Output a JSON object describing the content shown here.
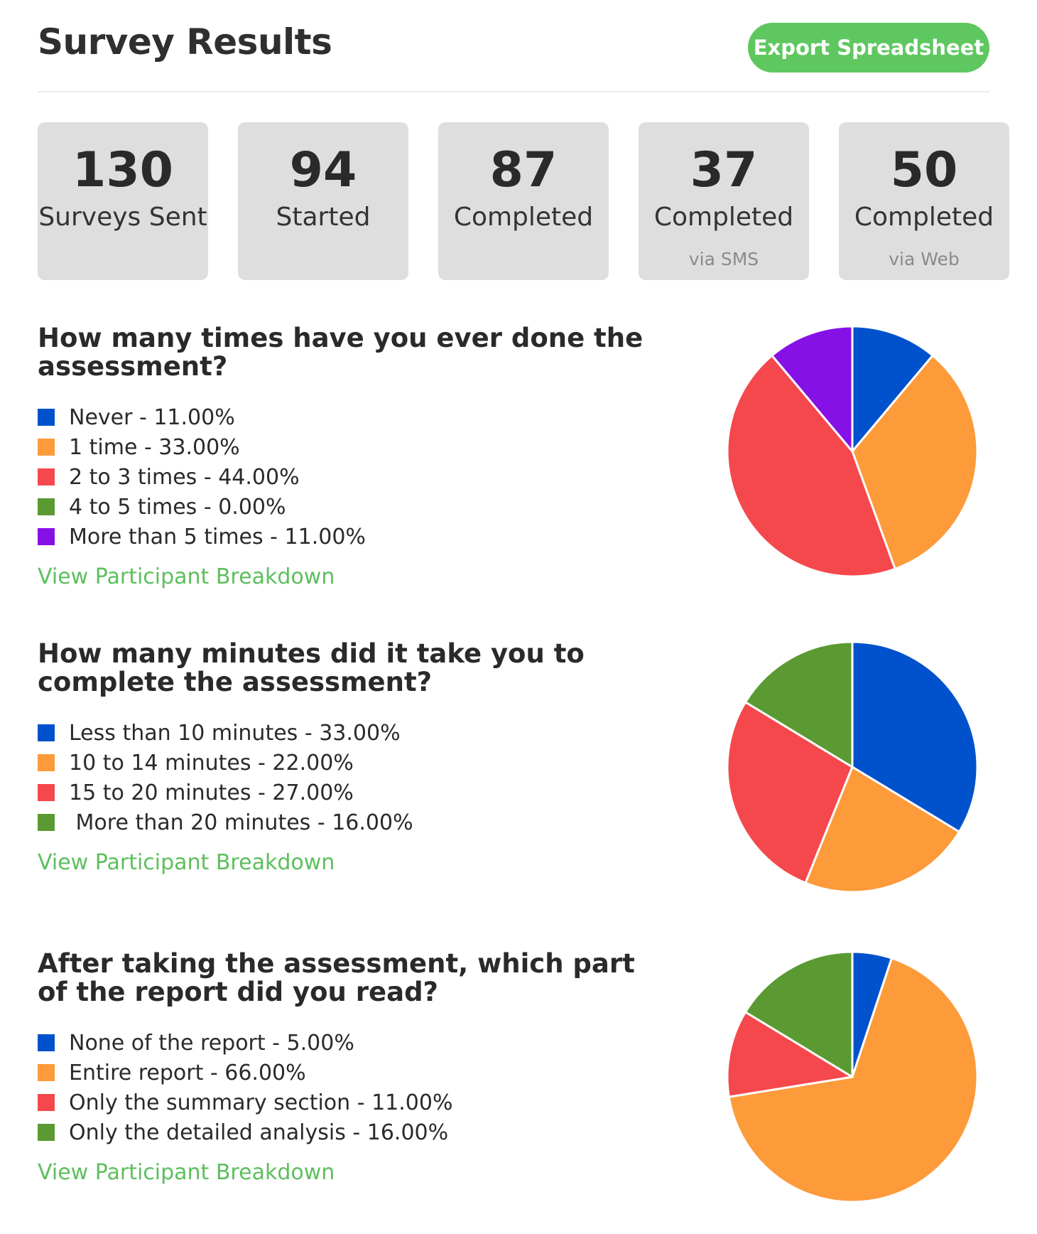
{
  "header": {
    "title": "Survey Results",
    "export_label": "Export Spreadsheet"
  },
  "stats": [
    {
      "value": "130",
      "label": "Surveys Sent",
      "sub": ""
    },
    {
      "value": "94",
      "label": "Started",
      "sub": ""
    },
    {
      "value": "87",
      "label": "Completed",
      "sub": ""
    },
    {
      "value": "37",
      "label": "Completed",
      "sub": "via SMS"
    },
    {
      "value": "50",
      "label": "Completed",
      "sub": "via Web"
    }
  ],
  "link_label": "View Participant Breakdown",
  "colors": {
    "blue": "#0052cc",
    "orange": "#fd9a3a",
    "red": "#f5484c",
    "green": "#5b9a32",
    "purple": "#8511e7",
    "link_green": "#5cbf5c",
    "button_green": "#5fc75f"
  },
  "chart_data": [
    {
      "type": "pie",
      "title": "How many times have you ever done the assessment?",
      "categories": [
        "Never",
        "1 time",
        "2 to 3 times",
        "4 to 5 times",
        "More than 5 times"
      ],
      "values": [
        11,
        33,
        44,
        0,
        11
      ],
      "legend_text": [
        "Never - 11.00%",
        "1 time - 33.00%",
        "2 to 3 times - 44.00%",
        "4 to 5 times - 0.00%",
        "More than 5 times - 11.00%"
      ],
      "colors": [
        "#0052cc",
        "#fd9a3a",
        "#f5484c",
        "#5b9a32",
        "#8511e7"
      ],
      "legend_position": "left"
    },
    {
      "type": "pie",
      "title": "How many minutes did it take you to complete the assessment?",
      "categories": [
        "Less than 10 minutes",
        "10 to 14 minutes",
        "15 to 20 minutes",
        "More than 20 minutes"
      ],
      "values": [
        33,
        22,
        27,
        16
      ],
      "legend_text": [
        "Less than 10 minutes - 33.00%",
        "10 to 14 minutes - 22.00%",
        "15 to 20 minutes - 27.00%",
        " More than 20 minutes - 16.00%"
      ],
      "colors": [
        "#0052cc",
        "#fd9a3a",
        "#f5484c",
        "#5b9a32"
      ],
      "legend_position": "left"
    },
    {
      "type": "pie",
      "title": "After taking the assessment, which part of the report did you read?",
      "categories": [
        "None of the report",
        "Entire report",
        "Only the summary section",
        "Only the detailed analysis"
      ],
      "values": [
        5,
        66,
        11,
        16
      ],
      "legend_text": [
        "None of the report - 5.00%",
        "Entire report - 66.00%",
        "Only the summary section - 11.00%",
        "Only the detailed analysis - 16.00%"
      ],
      "colors": [
        "#0052cc",
        "#fd9a3a",
        "#f5484c",
        "#5b9a32"
      ],
      "legend_position": "left"
    }
  ]
}
